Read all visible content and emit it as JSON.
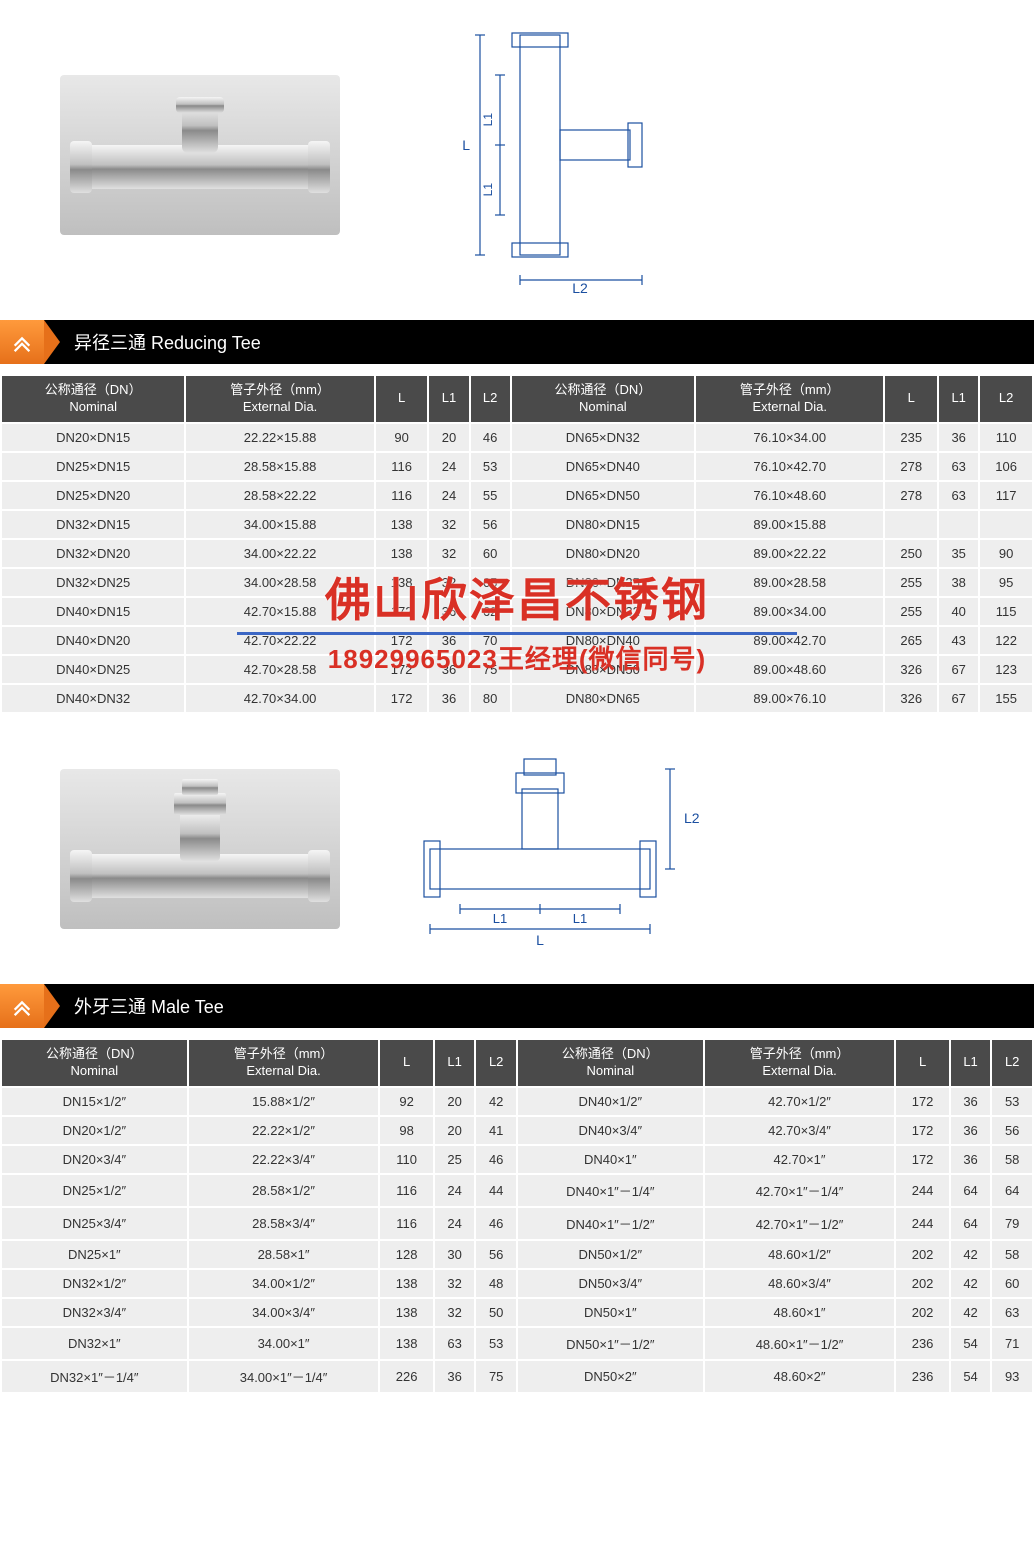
{
  "section1": {
    "title": "异径三通 Reducing Tee",
    "headers": {
      "nominal_cn": "公称通径（DN）",
      "nominal_en": "Nominal",
      "dia_cn": "管子外径（mm）",
      "dia_en": "External Dia.",
      "L": "L",
      "L1": "L1",
      "L2": "L2"
    },
    "rows_left": [
      {
        "n": "DN20×DN15",
        "d": "22.22×15.88",
        "L": "90",
        "L1": "20",
        "L2": "46"
      },
      {
        "n": "DN25×DN15",
        "d": "28.58×15.88",
        "L": "116",
        "L1": "24",
        "L2": "53"
      },
      {
        "n": "DN25×DN20",
        "d": "28.58×22.22",
        "L": "116",
        "L1": "24",
        "L2": "55"
      },
      {
        "n": "DN32×DN15",
        "d": "34.00×15.88",
        "L": "138",
        "L1": "32",
        "L2": "56"
      },
      {
        "n": "DN32×DN20",
        "d": "34.00×22.22",
        "L": "138",
        "L1": "32",
        "L2": "60"
      },
      {
        "n": "DN32×DN25",
        "d": "34.00×28.58",
        "L": "138",
        "L1": "32",
        "L2": "65"
      },
      {
        "n": "DN40×DN15",
        "d": "42.70×15.88",
        "L": "172",
        "L1": "36",
        "L2": "62"
      },
      {
        "n": "DN40×DN20",
        "d": "42.70×22.22",
        "L": "172",
        "L1": "36",
        "L2": "70"
      },
      {
        "n": "DN40×DN25",
        "d": "42.70×28.58",
        "L": "172",
        "L1": "36",
        "L2": "75"
      },
      {
        "n": "DN40×DN32",
        "d": "42.70×34.00",
        "L": "172",
        "L1": "36",
        "L2": "80"
      }
    ],
    "rows_right": [
      {
        "n": "DN65×DN32",
        "d": "76.10×34.00",
        "L": "235",
        "L1": "36",
        "L2": "110"
      },
      {
        "n": "DN65×DN40",
        "d": "76.10×42.70",
        "L": "278",
        "L1": "63",
        "L2": "106"
      },
      {
        "n": "DN65×DN50",
        "d": "76.10×48.60",
        "L": "278",
        "L1": "63",
        "L2": "117"
      },
      {
        "n": "DN80×DN15",
        "d": "89.00×15.88",
        "L": "",
        "L1": "",
        "L2": ""
      },
      {
        "n": "DN80×DN20",
        "d": "89.00×22.22",
        "L": "250",
        "L1": "35",
        "L2": "90"
      },
      {
        "n": "DN80×DN25",
        "d": "89.00×28.58",
        "L": "255",
        "L1": "38",
        "L2": "95"
      },
      {
        "n": "DN80×DN32",
        "d": "89.00×34.00",
        "L": "255",
        "L1": "40",
        "L2": "115"
      },
      {
        "n": "DN80×DN40",
        "d": "89.00×42.70",
        "L": "265",
        "L1": "43",
        "L2": "122"
      },
      {
        "n": "DN80×DN50",
        "d": "89.00×48.60",
        "L": "326",
        "L1": "67",
        "L2": "123"
      },
      {
        "n": "DN80×DN65",
        "d": "89.00×76.10",
        "L": "326",
        "L1": "67",
        "L2": "155"
      }
    ]
  },
  "watermark": {
    "main": "佛山欣泽昌不锈钢",
    "sub": "18929965023王经理(微信同号)"
  },
  "section2": {
    "title": "外牙三通 Male Tee",
    "headers": {
      "nominal_cn": "公称通径（DN）",
      "nominal_en": "Nominal",
      "dia_cn": "管子外径（mm）",
      "dia_en": "External Dia.",
      "L": "L",
      "L1": "L1",
      "L2": "L2"
    },
    "rows_left": [
      {
        "n": "DN15×1/2″",
        "d": "15.88×1/2″",
        "L": "92",
        "L1": "20",
        "L2": "42"
      },
      {
        "n": "DN20×1/2″",
        "d": "22.22×1/2″",
        "L": "98",
        "L1": "20",
        "L2": "41"
      },
      {
        "n": "DN20×3/4″",
        "d": "22.22×3/4″",
        "L": "110",
        "L1": "25",
        "L2": "46"
      },
      {
        "n": "DN25×1/2″",
        "d": "28.58×1/2″",
        "L": "116",
        "L1": "24",
        "L2": "44"
      },
      {
        "n": "DN25×3/4″",
        "d": "28.58×3/4″",
        "L": "116",
        "L1": "24",
        "L2": "46"
      },
      {
        "n": "DN25×1″",
        "d": "28.58×1″",
        "L": "128",
        "L1": "30",
        "L2": "56"
      },
      {
        "n": "DN32×1/2″",
        "d": "34.00×1/2″",
        "L": "138",
        "L1": "32",
        "L2": "48"
      },
      {
        "n": "DN32×3/4″",
        "d": "34.00×3/4″",
        "L": "138",
        "L1": "32",
        "L2": "50"
      },
      {
        "n": "DN32×1″",
        "d": "34.00×1″",
        "L": "138",
        "L1": "63",
        "L2": "53"
      },
      {
        "n": "DN32×1″－1/4″",
        "d": "34.00×1″－1/4″",
        "L": "226",
        "L1": "36",
        "L2": "75"
      }
    ],
    "rows_right": [
      {
        "n": "DN40×1/2″",
        "d": "42.70×1/2″",
        "L": "172",
        "L1": "36",
        "L2": "53"
      },
      {
        "n": "DN40×3/4″",
        "d": "42.70×3/4″",
        "L": "172",
        "L1": "36",
        "L2": "56"
      },
      {
        "n": "DN40×1″",
        "d": "42.70×1″",
        "L": "172",
        "L1": "36",
        "L2": "58"
      },
      {
        "n": "DN40×1″－1/4″",
        "d": "42.70×1″－1/4″",
        "L": "244",
        "L1": "64",
        "L2": "64"
      },
      {
        "n": "DN40×1″－1/2″",
        "d": "42.70×1″－1/2″",
        "L": "244",
        "L1": "64",
        "L2": "79"
      },
      {
        "n": "DN50×1/2″",
        "d": "48.60×1/2″",
        "L": "202",
        "L1": "42",
        "L2": "58"
      },
      {
        "n": "DN50×3/4″",
        "d": "48.60×3/4″",
        "L": "202",
        "L1": "42",
        "L2": "60"
      },
      {
        "n": "DN50×1″",
        "d": "48.60×1″",
        "L": "202",
        "L1": "42",
        "L2": "63"
      },
      {
        "n": "DN50×1″－1/2″",
        "d": "48.60×1″－1/2″",
        "L": "236",
        "L1": "54",
        "L2": "71"
      },
      {
        "n": "DN50×2″",
        "d": "48.60×2″",
        "L": "236",
        "L1": "54",
        "L2": "93"
      }
    ]
  },
  "colors": {
    "header_bg": "#000000",
    "th_bg": "#4a4a4a",
    "td_bg": "#eeeeee",
    "chevron_top": "#ff9a3c",
    "chevron_bottom": "#e6701a",
    "watermark_red": "#d93025",
    "underline_blue": "#3b66c4"
  },
  "diagram_labels": {
    "L": "L",
    "L1": "L1",
    "L2": "L2"
  }
}
